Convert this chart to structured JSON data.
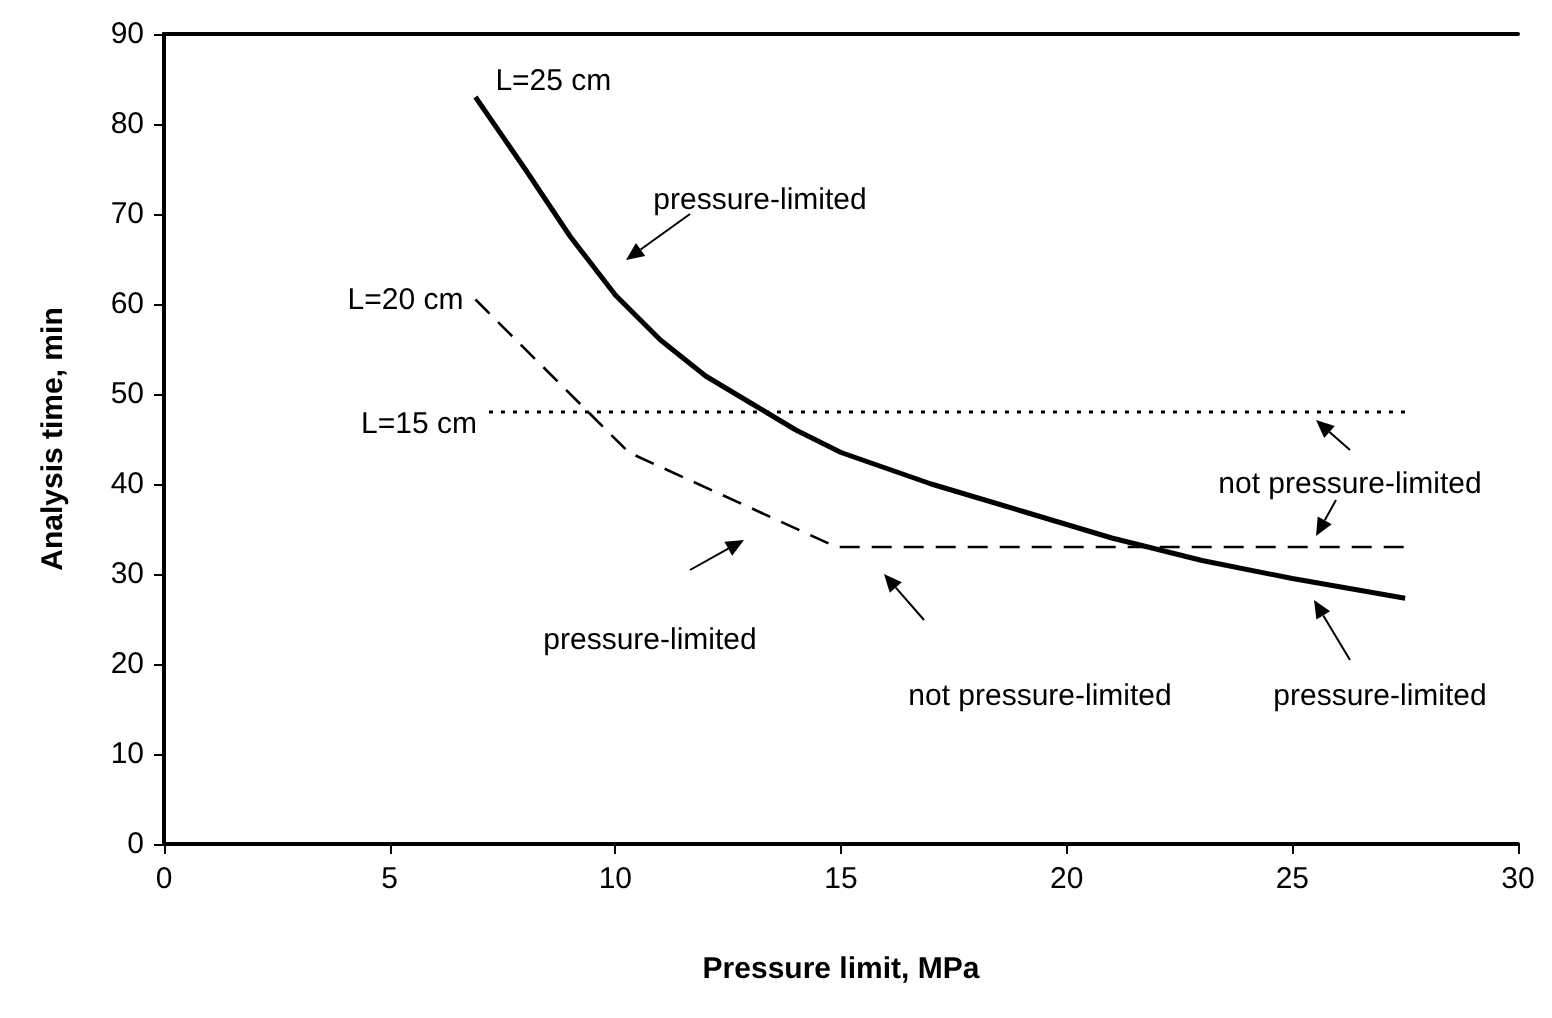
{
  "chart_data": {
    "type": "line",
    "xlabel": "Pressure limit, MPa",
    "ylabel": "Analysis time, min",
    "xlim": [
      0,
      30
    ],
    "xticks": [
      0,
      5,
      10,
      15,
      20,
      25,
      30
    ],
    "ylim": [
      0,
      90
    ],
    "yticks": [
      0,
      10,
      20,
      30,
      40,
      50,
      60,
      70,
      80,
      90
    ],
    "grid": false,
    "legend": false,
    "marker": "none",
    "series": [
      {
        "name": "L=25 cm",
        "color": "#000000",
        "line_style": "solid",
        "x": [
          6.9,
          8,
          9,
          10,
          11,
          12,
          13,
          14,
          15,
          17,
          19,
          21,
          23,
          25,
          27.5
        ],
        "values": [
          83,
          75,
          67.5,
          61,
          56,
          52,
          49,
          46,
          43.5,
          40,
          37,
          34,
          31.5,
          29.5,
          27.3
        ]
      },
      {
        "name": "L=20 cm",
        "color": "#000000",
        "line_style": "dashed",
        "x": [
          6.9,
          10.3,
          14.9,
          27.5
        ],
        "values": [
          60.5,
          43.5,
          33,
          33
        ]
      },
      {
        "name": "L=15 cm",
        "color": "#000000",
        "line_style": "dotted",
        "x": [
          7.2,
          27.5
        ],
        "values": [
          48,
          48
        ]
      }
    ],
    "annotations": [
      "pressure-limited",
      "pressure-limited",
      "not pressure-limited",
      "pressure-limited",
      "not pressure-limited"
    ]
  }
}
